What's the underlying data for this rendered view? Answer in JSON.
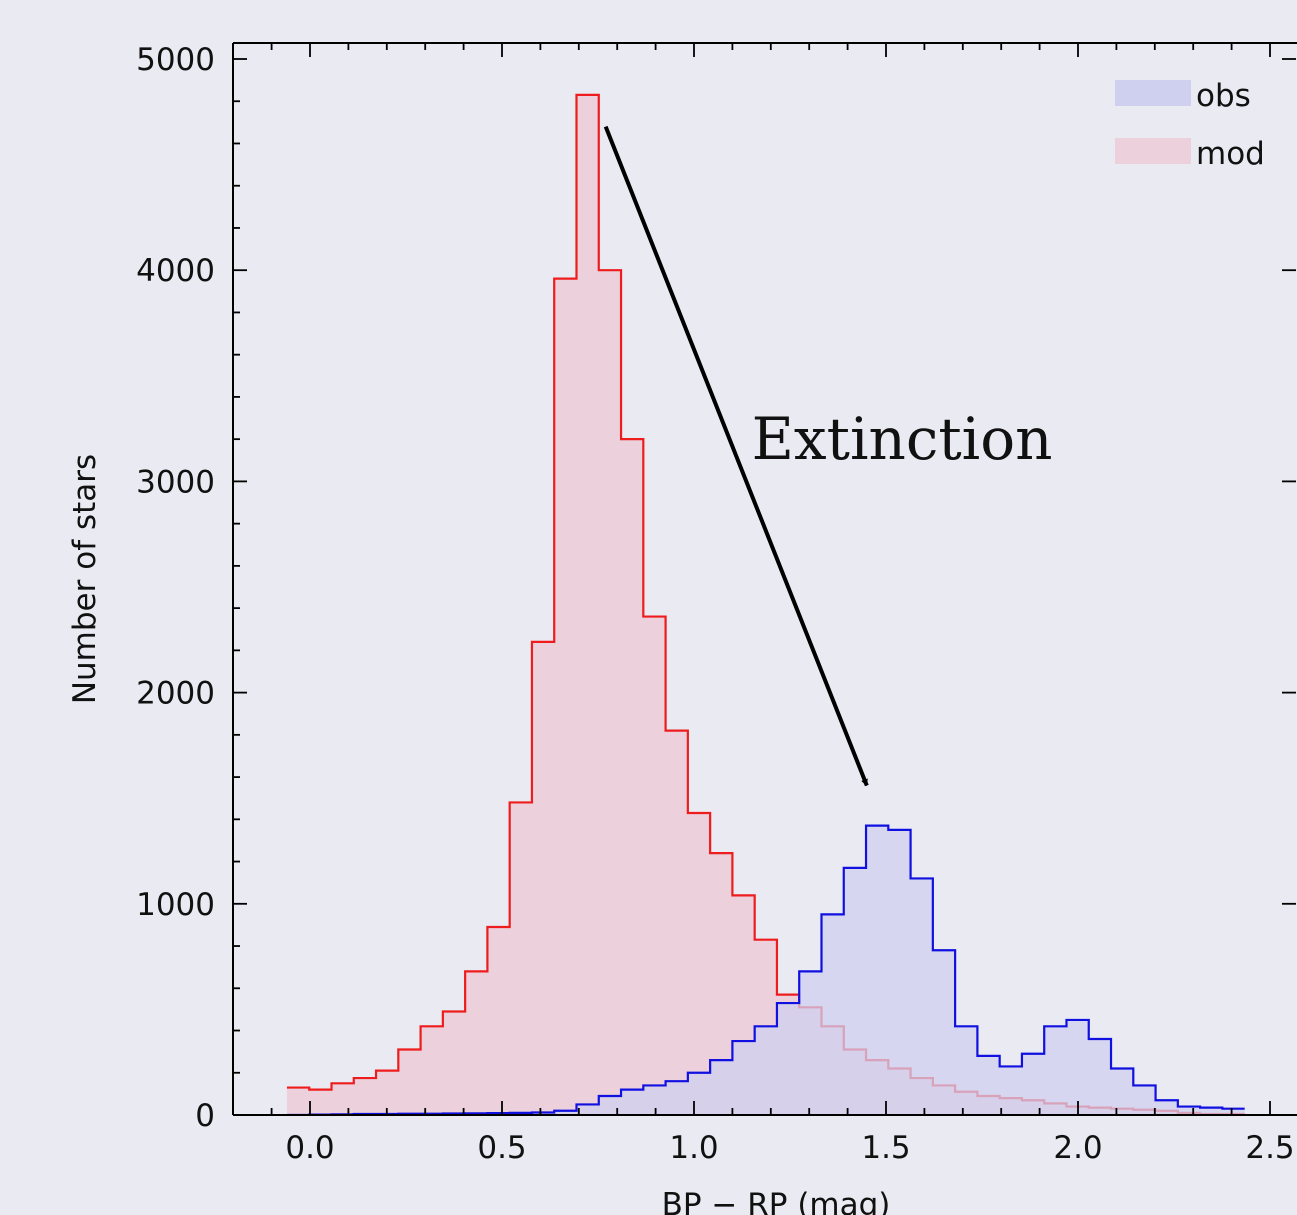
{
  "chart_data": {
    "type": "histogram",
    "xlabel": "BP − RP (mag)",
    "ylabel": "Number of stars",
    "xlim": [
      -0.1,
      2.5
    ],
    "ylim": [
      0,
      5000
    ],
    "xticks": [
      0.0,
      0.5,
      1.0,
      1.5,
      2.0,
      2.5
    ],
    "xtick_labels": [
      "0.0",
      "0.5",
      "1.0",
      "1.5",
      "2.0",
      "2.5"
    ],
    "yticks": [
      0,
      1000,
      2000,
      3000,
      4000,
      5000
    ],
    "ytick_labels": [
      "0",
      "1000",
      "2000",
      "3000",
      "4000",
      "5000"
    ],
    "bin_start": -0.06,
    "bin_width": 0.058,
    "legend": {
      "position": "top-right",
      "entries": [
        "obs",
        "mod"
      ]
    },
    "series": [
      {
        "name": "obs",
        "fill": "#cfcfef",
        "stroke": "#1010e0",
        "values": [
          0,
          2,
          3,
          5,
          5,
          6,
          6,
          7,
          8,
          9,
          10,
          12,
          20,
          50,
          90,
          120,
          140,
          160,
          200,
          260,
          350,
          420,
          530,
          680,
          950,
          1170,
          1370,
          1350,
          1120,
          780,
          420,
          280,
          230,
          290,
          420,
          450,
          360,
          220,
          140,
          70,
          40,
          35,
          30
        ]
      },
      {
        "name": "mod",
        "fill": "#ecd1dc",
        "stroke": "#ee1c1c",
        "values": [
          130,
          120,
          150,
          175,
          210,
          310,
          420,
          490,
          680,
          890,
          1480,
          2240,
          3960,
          4830,
          4000,
          3200,
          2360,
          1820,
          1430,
          1240,
          1040,
          830,
          570,
          510,
          420,
          310,
          260,
          220,
          175,
          140,
          110,
          90,
          80,
          70,
          55,
          40,
          35,
          30,
          25,
          20,
          10,
          5,
          5
        ]
      }
    ],
    "annotations": [
      {
        "text": "Extinction",
        "arrow_from": [
          0.77,
          4680
        ],
        "arrow_to": [
          1.45,
          1560
        ],
        "text_at": [
          1.15,
          3200
        ]
      }
    ]
  }
}
